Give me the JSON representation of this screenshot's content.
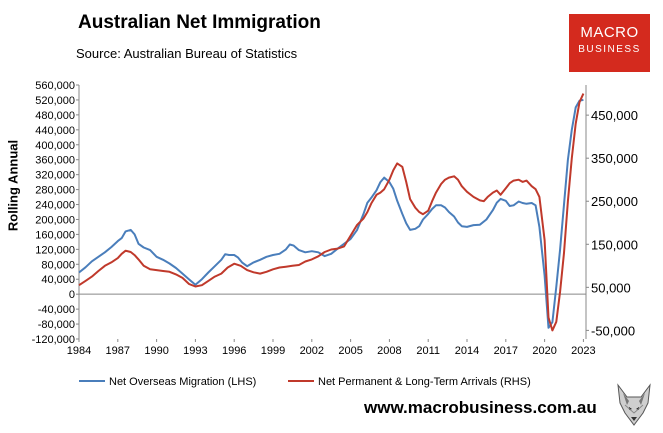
{
  "header": {
    "title": "Australian Net Immigration",
    "source": "Source: Australian Bureau of Statistics"
  },
  "brand": {
    "line1": "MACRO",
    "line2": "BUSINESS",
    "website": "www.macrobusiness.com.au",
    "brand_color": "#d42a1e"
  },
  "chart_data": {
    "type": "line",
    "title": "Australian Net Immigration",
    "ylabel": "Rolling Annual",
    "x_ticks": [
      "1984",
      "1987",
      "1990",
      "1993",
      "1996",
      "1999",
      "2002",
      "2005",
      "2008",
      "2011",
      "2014",
      "2017",
      "2020",
      "2023"
    ],
    "x_range": [
      1984,
      2023.2
    ],
    "y_left": {
      "ticks": [
        "560,000",
        "520,000",
        "480,000",
        "440,000",
        "400,000",
        "360,000",
        "320,000",
        "280,000",
        "240,000",
        "200,000",
        "160,000",
        "120,000",
        "80,000",
        "40,000",
        "0",
        "-40,000",
        "-80,000",
        "-120,000"
      ],
      "range": [
        -120000,
        560000
      ]
    },
    "y_right": {
      "ticks": [
        "450,000",
        "350,000",
        "250,000",
        "150,000",
        "50,000",
        "-50,000"
      ],
      "range": [
        -70000,
        520000
      ]
    },
    "grid": false,
    "legend_position": "bottom",
    "series": [
      {
        "name": "Net Overseas Migration (LHS)",
        "axis": "left",
        "color": "#4a7ebb",
        "x": [
          1984,
          1984.5,
          1985,
          1985.5,
          1986,
          1986.5,
          1987,
          1987.3,
          1987.6,
          1988,
          1988.3,
          1988.6,
          1989,
          1989.5,
          1990,
          1990.5,
          1991,
          1991.5,
          1992,
          1992.5,
          1993,
          1993.5,
          1994,
          1994.5,
          1995,
          1995.3,
          1995.6,
          1996,
          1996.3,
          1996.6,
          1997,
          1997.5,
          1998,
          1998.5,
          1999,
          1999.5,
          2000,
          2000.3,
          2000.6,
          2001,
          2001.5,
          2002,
          2002.5,
          2003,
          2003.5,
          2004,
          2004.5,
          2005,
          2005.5,
          2006,
          2006.3,
          2006.6,
          2007,
          2007.3,
          2007.6,
          2008,
          2008.3,
          2008.6,
          2009,
          2009.3,
          2009.6,
          2010,
          2010.3,
          2010.6,
          2011,
          2011.3,
          2011.6,
          2012,
          2012.3,
          2012.6,
          2013,
          2013.3,
          2013.6,
          2014,
          2014.5,
          2015,
          2015.5,
          2016,
          2016.3,
          2016.6,
          2017,
          2017.3,
          2017.6,
          2018,
          2018.3,
          2018.6,
          2019,
          2019.3,
          2019.6,
          2020,
          2020.3,
          2020.6,
          2020.9,
          2021.2,
          2021.5,
          2021.8,
          2022.1,
          2022.4,
          2022.7,
          2023
        ],
        "y": [
          58000,
          72000,
          88000,
          100000,
          112000,
          126000,
          142000,
          150000,
          168000,
          172000,
          160000,
          135000,
          125000,
          118000,
          100000,
          92000,
          82000,
          70000,
          55000,
          40000,
          25000,
          40000,
          58000,
          75000,
          92000,
          107000,
          105000,
          105000,
          98000,
          85000,
          75000,
          85000,
          92000,
          100000,
          105000,
          108000,
          120000,
          133000,
          130000,
          118000,
          112000,
          115000,
          112000,
          102000,
          108000,
          122000,
          135000,
          148000,
          172000,
          215000,
          245000,
          258000,
          278000,
          300000,
          312000,
          300000,
          282000,
          250000,
          215000,
          190000,
          172000,
          175000,
          182000,
          200000,
          215000,
          228000,
          238000,
          238000,
          232000,
          220000,
          208000,
          192000,
          182000,
          180000,
          185000,
          186000,
          200000,
          225000,
          245000,
          255000,
          250000,
          236000,
          238000,
          248000,
          244000,
          242000,
          244000,
          238000,
          180000,
          50000,
          -90000,
          -75000,
          20000,
          120000,
          240000,
          360000,
          440000,
          500000,
          518000,
          520000
        ]
      },
      {
        "name": "Net Permanent & Long-Term Arrivals (RHS)",
        "axis": "right",
        "color": "#c0392b",
        "x": [
          1984,
          1984.5,
          1985,
          1985.5,
          1986,
          1986.5,
          1987,
          1987.3,
          1987.6,
          1988,
          1988.3,
          1988.6,
          1989,
          1989.5,
          1990,
          1990.5,
          1991,
          1991.5,
          1992,
          1992.5,
          1993,
          1993.5,
          1994,
          1994.5,
          1995,
          1995.5,
          1996,
          1996.5,
          1997,
          1997.5,
          1998,
          1998.5,
          1999,
          1999.5,
          2000,
          2000.5,
          2001,
          2001.5,
          2002,
          2002.5,
          2003,
          2003.5,
          2004,
          2004.5,
          2005,
          2005.5,
          2006,
          2006.3,
          2006.6,
          2007,
          2007.3,
          2007.6,
          2008,
          2008.3,
          2008.6,
          2009,
          2009.3,
          2009.6,
          2010,
          2010.3,
          2010.6,
          2011,
          2011.3,
          2011.6,
          2012,
          2012.3,
          2012.6,
          2013,
          2013.3,
          2013.6,
          2014,
          2014.5,
          2015,
          2015.3,
          2015.6,
          2016,
          2016.3,
          2016.6,
          2017,
          2017.3,
          2017.6,
          2018,
          2018.3,
          2018.6,
          2019,
          2019.3,
          2019.6,
          2020,
          2020.3,
          2020.6,
          2020.9,
          2021.2,
          2021.5,
          2021.8,
          2022.1,
          2022.4,
          2022.7,
          2023
        ],
        "y": [
          55000,
          65000,
          75000,
          88000,
          100000,
          108000,
          118000,
          128000,
          135000,
          132000,
          125000,
          115000,
          100000,
          92000,
          90000,
          88000,
          86000,
          80000,
          72000,
          58000,
          52000,
          55000,
          65000,
          75000,
          82000,
          96000,
          105000,
          100000,
          90000,
          85000,
          82000,
          86000,
          92000,
          96000,
          98000,
          100000,
          102000,
          110000,
          115000,
          122000,
          132000,
          138000,
          140000,
          145000,
          170000,
          195000,
          210000,
          225000,
          245000,
          265000,
          270000,
          278000,
          300000,
          322000,
          338000,
          330000,
          295000,
          255000,
          235000,
          225000,
          220000,
          228000,
          250000,
          270000,
          290000,
          300000,
          305000,
          308000,
          300000,
          285000,
          272000,
          260000,
          252000,
          250000,
          260000,
          270000,
          275000,
          265000,
          280000,
          292000,
          298000,
          300000,
          295000,
          298000,
          285000,
          278000,
          260000,
          160000,
          -20000,
          -50000,
          -30000,
          40000,
          130000,
          250000,
          350000,
          430000,
          480000,
          500000
        ]
      }
    ]
  }
}
